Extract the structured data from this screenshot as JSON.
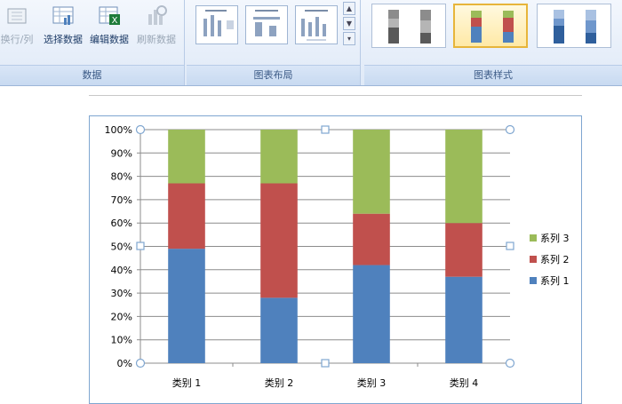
{
  "ribbon": {
    "data_group": {
      "label": "数据",
      "buttons": [
        {
          "label": "换行/列",
          "enabled": false
        },
        {
          "label": "选择数据",
          "enabled": true
        },
        {
          "label": "编辑数据",
          "enabled": true
        },
        {
          "label": "刷新数据",
          "enabled": false
        }
      ]
    },
    "layout_group": {
      "label": "图表布局"
    },
    "style_group": {
      "label": "图表样式"
    }
  },
  "colors": {
    "series1": "#4f81bd",
    "series2": "#c0504d",
    "series3": "#9bbb59"
  },
  "chart_data": {
    "type": "bar",
    "stacked": true,
    "normalized": true,
    "categories": [
      "类别 1",
      "类别 2",
      "类别 3",
      "类别 4"
    ],
    "series": [
      {
        "name": "系列 1",
        "values": [
          49,
          28,
          42,
          37
        ]
      },
      {
        "name": "系列 2",
        "values": [
          28,
          49,
          22,
          23
        ]
      },
      {
        "name": "系列 3",
        "values": [
          23,
          23,
          36,
          40
        ]
      }
    ],
    "y_ticks": [
      "0%",
      "10%",
      "20%",
      "30%",
      "40%",
      "50%",
      "60%",
      "70%",
      "80%",
      "90%",
      "100%"
    ],
    "ylim": [
      0,
      100
    ],
    "grid": true,
    "legend": "right"
  }
}
